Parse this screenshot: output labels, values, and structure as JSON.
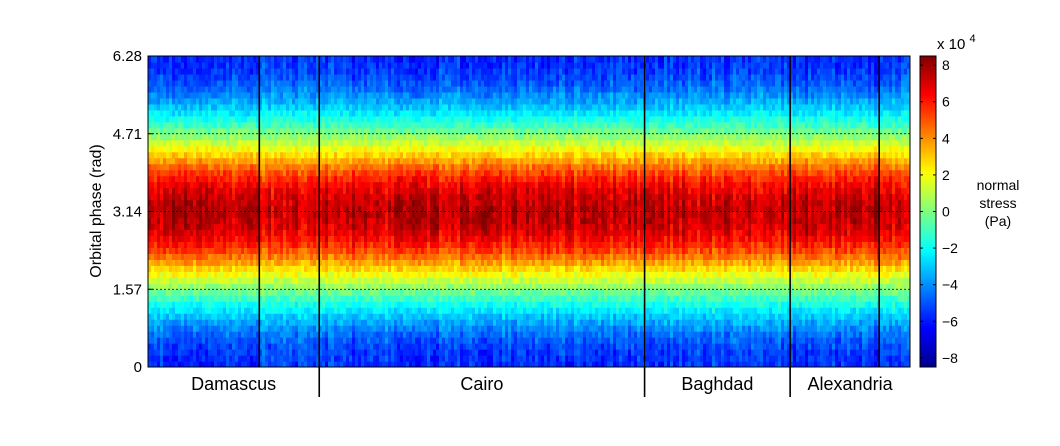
{
  "chart_data": {
    "type": "heatmap",
    "ylabel": "Orbital phase (rad)",
    "ylim": [
      0,
      6.28
    ],
    "yticks": [
      0,
      1.57,
      3.14,
      4.71,
      6.28
    ],
    "ytick_labels": [
      "0",
      "1.57",
      "3.14",
      "4.71",
      "6.28"
    ],
    "grid": "horizontal dotted lines at 1.57, 3.14, 4.71",
    "colormap": "jet",
    "colorbar": {
      "label_lines": [
        "normal",
        "stress",
        "(Pa)"
      ],
      "multiplier": "x 10",
      "exponent": "4",
      "ticks": [
        -8,
        -6,
        -4,
        -2,
        0,
        2,
        4,
        6,
        8
      ],
      "tick_labels": [
        "−8",
        "−6",
        "−4",
        "−2",
        "0",
        "2",
        "4",
        "6",
        "8"
      ],
      "range": [
        -8.5,
        8.5
      ]
    },
    "regions": [
      {
        "name": "Damascus",
        "x_range": [
          0,
          1.0
        ],
        "columns": 2
      },
      {
        "name": "Cairo",
        "x_range": [
          1.0,
          2.9
        ],
        "columns": 2
      },
      {
        "name": "Baghdad",
        "x_range": [
          2.9,
          3.75
        ],
        "columns": 2
      },
      {
        "name": "Alexandria",
        "x_range": [
          3.75,
          4.45
        ],
        "columns": 2
      }
    ],
    "column_separators": [
      0.65,
      1.0,
      2.9,
      3.75,
      4.27
    ],
    "pattern": "normal stress peaks near phase 3.14 (~+7e4 Pa) and is most negative near 0 and 6.28 (~-8e4 Pa)"
  }
}
